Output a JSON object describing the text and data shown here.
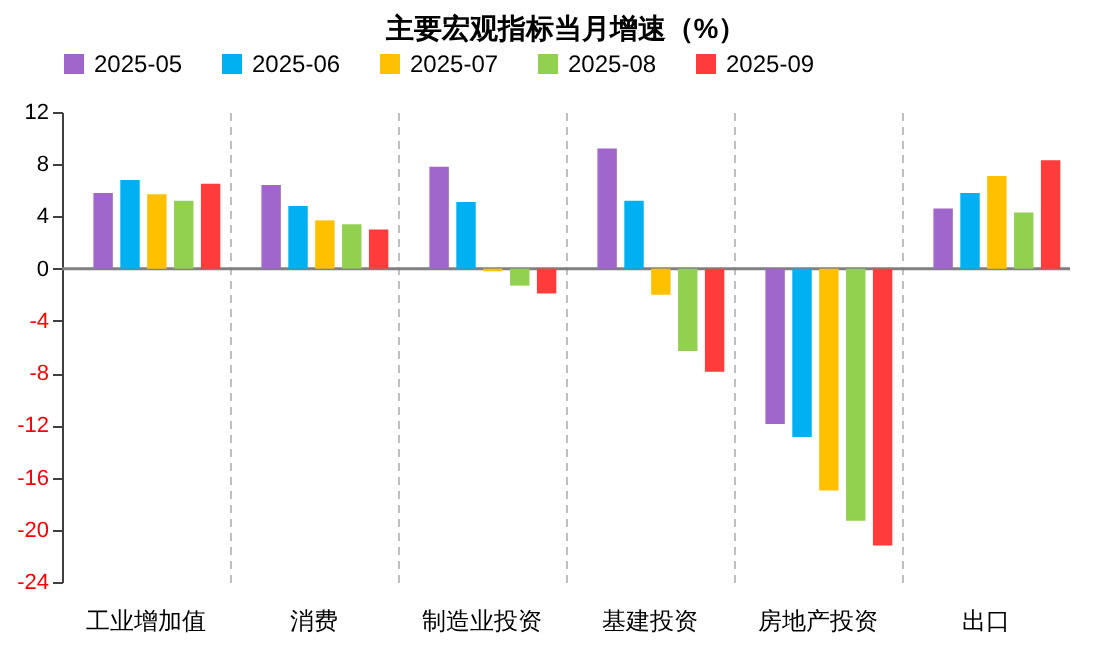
{
  "chart_data": {
    "type": "bar",
    "title": "主要宏观指标当月增速（%）",
    "categories": [
      "工业增加值",
      "消费",
      "制造业投资",
      "基建投资",
      "房地产投资",
      "出口"
    ],
    "series": [
      {
        "name": "2025-05",
        "color": "#a066cc",
        "values": [
          5.8,
          6.4,
          7.8,
          9.2,
          -11.9,
          4.6
        ]
      },
      {
        "name": "2025-06",
        "color": "#00b0f0",
        "values": [
          6.8,
          4.8,
          5.1,
          5.2,
          -12.9,
          5.8
        ]
      },
      {
        "name": "2025-07",
        "color": "#ffc000",
        "values": [
          5.7,
          3.7,
          -0.2,
          -2.0,
          -17.0,
          7.1
        ]
      },
      {
        "name": "2025-08",
        "color": "#92d050",
        "values": [
          5.2,
          3.4,
          -1.3,
          -6.3,
          -19.3,
          4.3
        ]
      },
      {
        "name": "2025-09",
        "color": "#ff3b3b",
        "values": [
          6.5,
          3.0,
          -1.9,
          -7.9,
          -21.2,
          8.3
        ]
      }
    ],
    "ylim": [
      -24,
      12
    ],
    "yticks": [
      -24,
      -20,
      -16,
      -12,
      -8,
      -4,
      0,
      4,
      8,
      12
    ],
    "grid": "x",
    "legend": "top"
  }
}
